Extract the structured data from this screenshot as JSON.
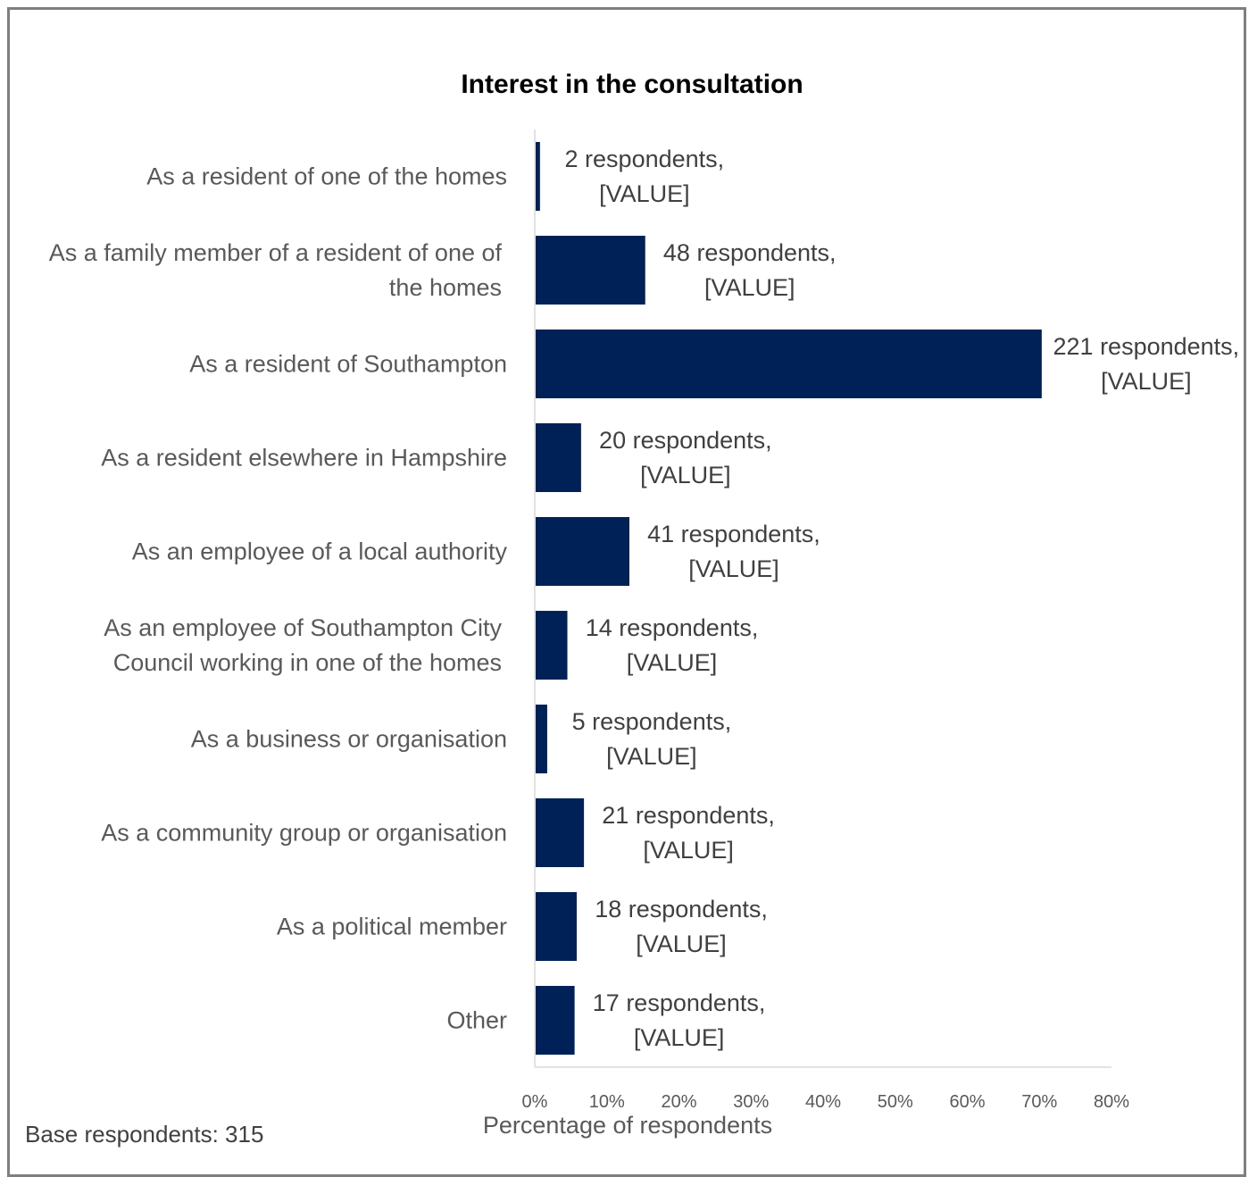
{
  "chart_data": {
    "type": "bar",
    "orientation": "horizontal",
    "title": "Interest in the consultation",
    "xlabel": "Percentage of respondents",
    "ylabel": "",
    "xlim": [
      0,
      80
    ],
    "x_ticks": [
      "0%",
      "10%",
      "20%",
      "30%",
      "40%",
      "50%",
      "60%",
      "70%",
      "80%"
    ],
    "grid": false,
    "bar_color": "#002157",
    "categories": [
      [
        "As a resident of one of the homes"
      ],
      [
        "As a family member of a resident of one of",
        "the homes"
      ],
      [
        "As a resident of Southampton"
      ],
      [
        "As a resident elsewhere in Hampshire"
      ],
      [
        "As an employee of a local authority"
      ],
      [
        "As an employee of Southampton City",
        "Council working in one of the homes"
      ],
      [
        "As a business or organisation"
      ],
      [
        "As a community group or organisation"
      ],
      [
        "As a political member"
      ],
      [
        "Other"
      ]
    ],
    "respondents": [
      2,
      48,
      221,
      20,
      41,
      14,
      5,
      21,
      18,
      17
    ],
    "values": [
      0.6,
      15.2,
      70.2,
      6.3,
      13.0,
      4.4,
      1.6,
      6.7,
      5.7,
      5.4
    ],
    "data_labels": [
      [
        "2 respondents,",
        "[VALUE]"
      ],
      [
        "48 respondents,",
        "[VALUE]"
      ],
      [
        "221 respondents,",
        "[VALUE]"
      ],
      [
        "20 respondents,",
        "[VALUE]"
      ],
      [
        "41 respondents,",
        "[VALUE]"
      ],
      [
        "14 respondents,",
        "[VALUE]"
      ],
      [
        "5 respondents,",
        "[VALUE]"
      ],
      [
        "21 respondents,",
        "[VALUE]"
      ],
      [
        "18 respondents,",
        "[VALUE]"
      ],
      [
        "17 respondents,",
        "[VALUE]"
      ]
    ],
    "base_note": "Base respondents: 315"
  }
}
